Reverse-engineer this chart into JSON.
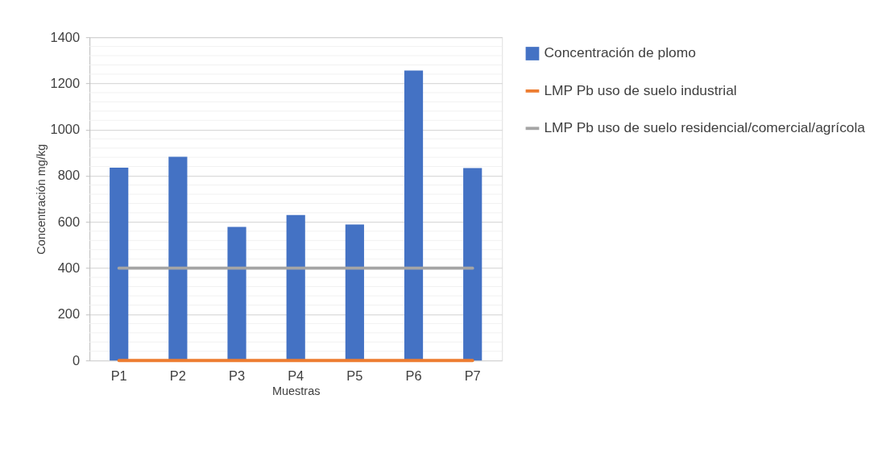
{
  "chart_data": {
    "type": "bar",
    "xlabel": "Muestras",
    "ylabel": "Concentración mg/kg",
    "categories": [
      "P1",
      "P2",
      "P3",
      "P4",
      "P5",
      "P6",
      "P7"
    ],
    "series": [
      {
        "name": "Concentración de plomo",
        "color": "#4472c4",
        "values": [
          835,
          882,
          579,
          630,
          589,
          1256,
          833
        ]
      },
      {
        "name": "LMP Pb uso de suelo industrial",
        "type": "line",
        "color": "#ed7d31",
        "values": [
          0,
          0,
          0,
          0,
          0,
          0,
          0
        ]
      },
      {
        "name": "LMP Pb uso de suelo residencial/comercial/agrícola",
        "type": "line",
        "color": "#a5a5a5",
        "values": [
          400,
          400,
          400,
          400,
          400,
          400,
          400
        ]
      }
    ],
    "ylim": [
      0,
      1400
    ],
    "yticks": [
      0,
      {
        "value": 40,
        "label": null
      },
      {
        "value": 80,
        "label": null
      },
      {
        "value": 120,
        "label": null
      },
      {
        "value": 160,
        "label": null
      },
      200,
      {
        "value": 240,
        "label": null
      },
      {
        "value": 280,
        "label": null
      },
      {
        "value": 320,
        "label": null
      },
      {
        "value": 360,
        "label": null
      },
      400,
      {
        "value": 440,
        "label": null
      },
      {
        "value": 480,
        "label": null
      },
      {
        "value": 520,
        "label": null
      },
      {
        "value": 560,
        "label": null
      },
      600,
      {
        "value": 640,
        "label": null
      },
      {
        "value": 680,
        "label": null
      },
      {
        "value": 720,
        "label": null
      },
      {
        "value": 760,
        "label": null
      },
      800,
      {
        "value": 840,
        "label": null
      },
      {
        "value": 880,
        "label": null
      },
      {
        "value": 920,
        "label": null
      },
      {
        "value": 960,
        "label": null
      },
      1000,
      {
        "value": 1040,
        "label": null
      },
      {
        "value": 1080,
        "label": null
      },
      {
        "value": 1120,
        "label": null
      },
      {
        "value": 1160,
        "label": null
      },
      1200,
      {
        "value": 1240,
        "label": null
      },
      {
        "value": 1280,
        "label": null
      },
      {
        "value": 1320,
        "label": null
      },
      {
        "value": 1360,
        "label": null
      },
      1400
    ],
    "grid": true,
    "legend": "right"
  }
}
